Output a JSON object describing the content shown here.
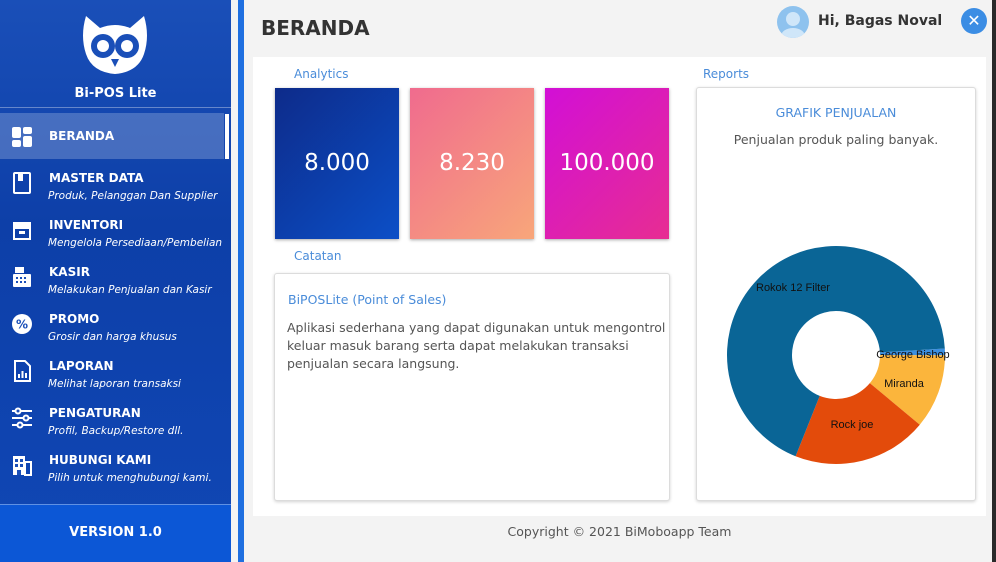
{
  "app": {
    "name": "Bi-POS Lite",
    "version": "VERSION 1.0"
  },
  "header": {
    "title": "BERANDA",
    "greeting": "Hi, Bagas Noval",
    "close_icon": "close-icon"
  },
  "sidebar": {
    "items": [
      {
        "title": "BERANDA",
        "subtitle": "",
        "icon": "dashboard-icon"
      },
      {
        "title": "MASTER DATA",
        "subtitle": "Produk, Pelanggan Dan Supplier",
        "icon": "book-icon"
      },
      {
        "title": "INVENTORI",
        "subtitle": "Mengelola Persediaan/Pembelian",
        "icon": "inventory-icon"
      },
      {
        "title": "KASIR",
        "subtitle": "Melakukan Penjualan dan Kasir",
        "icon": "cash-register-icon"
      },
      {
        "title": "PROMO",
        "subtitle": "Grosir dan harga khusus",
        "icon": "percent-icon"
      },
      {
        "title": "LAPORAN",
        "subtitle": "Melihat laporan transaksi",
        "icon": "report-icon"
      },
      {
        "title": "PENGATURAN",
        "subtitle": "Profil, Backup/Restore dll.",
        "icon": "settings-sliders-icon"
      },
      {
        "title": "HUBUNGI KAMI",
        "subtitle": "Pilih untuk menghubungi kami.",
        "icon": "building-icon"
      }
    ]
  },
  "analytics": {
    "label": "Analytics",
    "cards": [
      {
        "value": "8.000",
        "color": "#0c3fb0"
      },
      {
        "value": "8.230",
        "color": "#f48482"
      },
      {
        "value": "100.000",
        "color": "#dc18bc"
      }
    ]
  },
  "notes": {
    "label": "Catatan",
    "title": "BiPOSLite (Point of Sales)",
    "text": "Aplikasi sederhana yang dapat digunakan untuk mengontrol keluar masuk barang serta dapat melakukan transaksi penjualan secara langsung."
  },
  "reports": {
    "label": "Reports",
    "chart_title": "GRAFIK PENJUALAN",
    "chart_subtitle": "Penjualan produk paling banyak."
  },
  "chart_data": {
    "type": "pie",
    "title": "GRAFIK PENJUALAN",
    "subtitle": "Penjualan produk paling banyak.",
    "donut": true,
    "categories": [
      "Rokok 12 Filter",
      "George Bishop",
      "Miranda",
      "Rock joe"
    ],
    "values": [
      68,
      1,
      11,
      20
    ],
    "colors": [
      "#0a6596",
      "#3c8fe0",
      "#fbb53c",
      "#e34b0b"
    ]
  },
  "footer": {
    "copyright": "Copyright © 2021 BiMoboapp Team"
  }
}
